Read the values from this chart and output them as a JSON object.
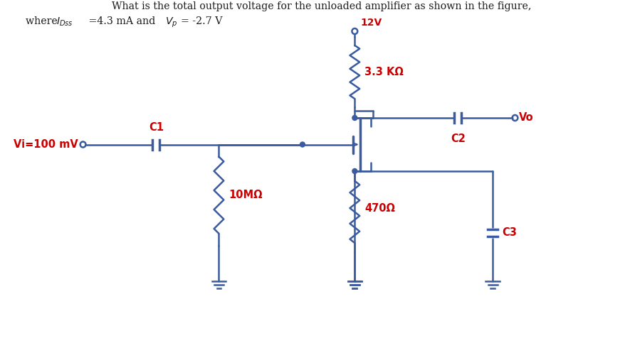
{
  "circuit_color": "#3A5BA0",
  "label_color": "#CC0000",
  "text_color": "#1A1A1A",
  "bg_color": "#FFFFFF",
  "title_line1": "What is the total output voltage for the unloaded amplifier as shown in the figure,",
  "title_line2_a": "where ",
  "title_line2_b": "I",
  "title_line2_c": "Dss",
  "title_line2_d": " =4.3 mA and ",
  "title_line2_e": "V",
  "title_line2_f": "p",
  "title_line2_g": "= -2.7 V",
  "VDD": "12V",
  "R_D": "3.3 KΩ",
  "R_S": "470Ω",
  "R_G": "10MΩ",
  "C1_lbl": "C1",
  "C2_lbl": "C2",
  "C3_lbl": "C3",
  "Vi_lbl": "Vi=100 mV",
  "Vo_lbl": "Vo",
  "lw": 1.8,
  "lw_thick": 2.5
}
